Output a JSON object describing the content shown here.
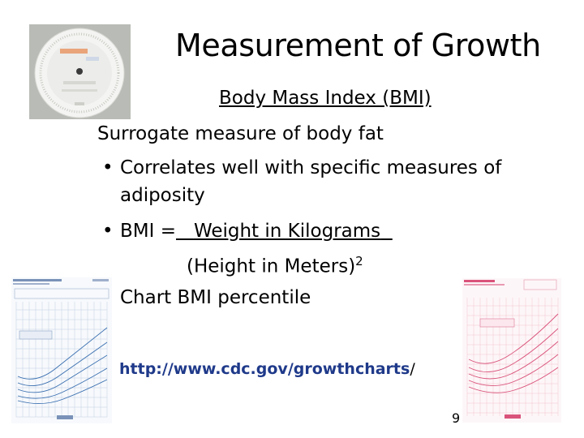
{
  "slide": {
    "title": "Measurement of Growth",
    "subtitle": "Body Mass Index (BMI)",
    "lines": [
      "Surrogate measure of body fat",
      "Correlates well with specific measures of",
      "adiposity",
      "BMI =",
      "Weight in Kilograms",
      "(Height in Meters)",
      "2",
      "Chart BMI percentile"
    ],
    "bullet_symbol": "•",
    "link_text": "http://www.cdc.gov/growthcharts",
    "link_trailing": "/",
    "page_number": "9"
  },
  "colors": {
    "dial_background": "#b9bcb6",
    "chart_blue_line": "#3a6fb0",
    "chart_pink_line": "#d9537a",
    "link": "#1f3a8a"
  },
  "images": {
    "dial": "bmi-wheel-calculator-image",
    "chart_left": "boys-bmi-growth-chart-image",
    "chart_right": "girls-bmi-growth-chart-image"
  }
}
